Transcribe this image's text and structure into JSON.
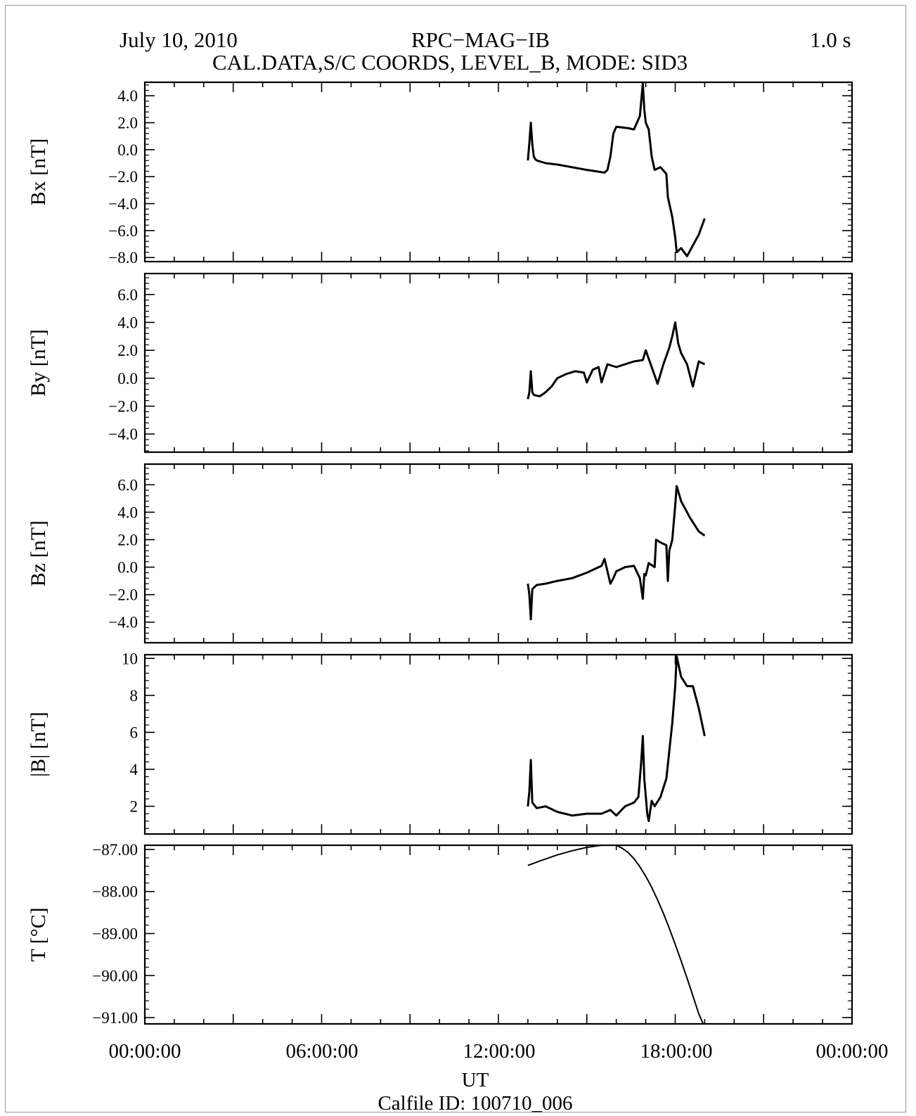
{
  "header": {
    "date": "July 10, 2010",
    "instrument": "RPC−MAG−IB",
    "resolution": "1.0 s",
    "subtitle": "CAL.DATA,S/C COORDS, LEVEL_B, MODE: SID3"
  },
  "footer": {
    "xlabel": "UT",
    "calfile": "Calfile ID: 100710_006"
  },
  "x_tick_labels": [
    "00:00:00",
    "06:00:00",
    "12:00:00",
    "18:00:00",
    "00:00:00"
  ],
  "colors": {
    "line": "#000000",
    "background": "#ffffff"
  },
  "chart_data": [
    {
      "type": "line",
      "ylabel": "Bx [nT]",
      "xlim": [
        0,
        24
      ],
      "ylim": [
        -8.3,
        5.0
      ],
      "y_ticks": [
        4.0,
        2.0,
        0.0,
        -2.0,
        -4.0,
        -6.0,
        -8.0
      ],
      "y_tick_labels": [
        "4.0",
        "2.0",
        "0.0",
        "−2.0",
        "−4.0",
        "−6.0",
        "−8.0"
      ],
      "series": [
        {
          "x": [
            13.0,
            13.05,
            13.1,
            13.15,
            13.2,
            13.25,
            13.3,
            13.6,
            14.0,
            14.5,
            15.0,
            15.3,
            15.6,
            15.7,
            15.8,
            15.9,
            16.0,
            16.4,
            16.6,
            16.8,
            16.9,
            16.95,
            17.0,
            17.1,
            17.2,
            17.3,
            17.5,
            17.7,
            17.75,
            17.8,
            17.9,
            18.0,
            18.05,
            18.2,
            18.4,
            18.6,
            18.8,
            19.0
          ],
          "y": [
            -0.8,
            0.5,
            2.0,
            0.4,
            -0.5,
            -0.7,
            -0.8,
            -1.0,
            -1.1,
            -1.3,
            -1.5,
            -1.6,
            -1.7,
            -1.5,
            -0.5,
            1.2,
            1.7,
            1.6,
            1.5,
            2.5,
            4.9,
            3.0,
            2.0,
            1.5,
            -0.5,
            -1.5,
            -1.3,
            -1.8,
            -3.5,
            -4.0,
            -5.0,
            -6.5,
            -7.6,
            -7.3,
            -7.9,
            -7.1,
            -6.3,
            -5.1
          ]
        }
      ]
    },
    {
      "type": "line",
      "ylabel": "By [nT]",
      "xlim": [
        0,
        24
      ],
      "ylim": [
        -5.3,
        7.5
      ],
      "y_ticks": [
        6.0,
        4.0,
        2.0,
        0.0,
        -2.0,
        -4.0
      ],
      "y_tick_labels": [
        "6.0",
        "4.0",
        "2.0",
        "0.0",
        "−2.0",
        "−4.0"
      ],
      "series": [
        {
          "x": [
            13.0,
            13.05,
            13.1,
            13.15,
            13.2,
            13.4,
            13.6,
            13.8,
            14.0,
            14.3,
            14.6,
            14.9,
            15.0,
            15.2,
            15.4,
            15.5,
            15.7,
            16.0,
            16.3,
            16.6,
            16.9,
            17.0,
            17.2,
            17.4,
            17.6,
            17.8,
            17.9,
            18.0,
            18.1,
            18.2,
            18.4,
            18.6,
            18.8,
            19.0
          ],
          "y": [
            -1.5,
            -1.0,
            0.5,
            -1.0,
            -1.2,
            -1.3,
            -1.0,
            -0.6,
            0.0,
            0.3,
            0.5,
            0.4,
            -0.3,
            0.6,
            0.8,
            -0.3,
            1.0,
            0.8,
            1.0,
            1.2,
            1.3,
            2.0,
            0.8,
            -0.4,
            1.0,
            2.2,
            3.0,
            4.0,
            2.5,
            1.8,
            1.0,
            -0.6,
            1.2,
            1.0
          ]
        }
      ]
    },
    {
      "type": "line",
      "ylabel": "Bz [nT]",
      "xlim": [
        0,
        24
      ],
      "ylim": [
        -5.5,
        7.5
      ],
      "y_ticks": [
        6.0,
        4.0,
        2.0,
        0.0,
        -2.0,
        -4.0
      ],
      "y_tick_labels": [
        "6.0",
        "4.0",
        "2.0",
        "0.0",
        "−2.0",
        "−4.0"
      ],
      "series": [
        {
          "x": [
            13.0,
            13.05,
            13.1,
            13.15,
            13.3,
            13.6,
            14.0,
            14.5,
            15.0,
            15.5,
            15.6,
            15.8,
            15.9,
            16.0,
            16.3,
            16.6,
            16.8,
            16.9,
            16.95,
            17.0,
            17.1,
            17.3,
            17.35,
            17.5,
            17.7,
            17.75,
            17.8,
            17.9,
            18.0,
            18.05,
            18.2,
            18.5,
            18.8,
            19.0
          ],
          "y": [
            -1.2,
            -2.0,
            -3.8,
            -1.6,
            -1.3,
            -1.2,
            -1.0,
            -0.8,
            -0.4,
            0.1,
            0.6,
            -1.2,
            -0.8,
            -0.3,
            0.0,
            0.1,
            -0.8,
            -2.3,
            -0.5,
            -0.6,
            0.3,
            0.0,
            2.0,
            1.8,
            1.6,
            -1.0,
            1.2,
            2.0,
            4.5,
            5.9,
            4.8,
            3.6,
            2.6,
            2.3
          ]
        }
      ]
    },
    {
      "type": "line",
      "ylabel": "|B| [nT]",
      "xlim": [
        0,
        24
      ],
      "ylim": [
        0.5,
        10.2
      ],
      "y_ticks": [
        10,
        8,
        6,
        4,
        2
      ],
      "y_tick_labels": [
        "10",
        "8",
        "6",
        "4",
        "2"
      ],
      "series": [
        {
          "x": [
            13.0,
            13.05,
            13.1,
            13.15,
            13.3,
            13.6,
            14.0,
            14.5,
            15.0,
            15.5,
            15.8,
            16.0,
            16.3,
            16.6,
            16.75,
            16.85,
            16.9,
            16.95,
            17.05,
            17.1,
            17.2,
            17.3,
            17.5,
            17.7,
            17.8,
            17.9,
            18.0,
            18.05,
            18.2,
            18.4,
            18.6,
            18.8,
            19.0
          ],
          "y": [
            2.0,
            2.8,
            4.5,
            2.2,
            1.9,
            2.0,
            1.7,
            1.5,
            1.6,
            1.6,
            1.8,
            1.5,
            2.0,
            2.2,
            2.5,
            4.5,
            5.8,
            3.5,
            1.6,
            1.2,
            2.3,
            2.0,
            2.5,
            3.5,
            5.0,
            6.5,
            8.5,
            10.1,
            9.0,
            8.5,
            8.5,
            7.3,
            5.8
          ]
        }
      ]
    },
    {
      "type": "line",
      "ylabel": "T [°C]",
      "xlim": [
        0,
        24
      ],
      "ylim": [
        -91.15,
        -86.9
      ],
      "y_ticks": [
        -87.0,
        -88.0,
        -89.0,
        -90.0,
        -91.0
      ],
      "y_tick_labels": [
        "−87.00",
        "−88.00",
        "−89.00",
        "−90.00",
        "−91.00"
      ],
      "series": [
        {
          "x": [
            13.0,
            13.5,
            14.0,
            14.5,
            15.0,
            15.5,
            15.8,
            16.0,
            16.2,
            16.4,
            16.6,
            16.8,
            17.0,
            17.2,
            17.4,
            17.6,
            17.8,
            18.0,
            18.2,
            18.4,
            18.6,
            18.8,
            18.95
          ],
          "y": [
            -87.38,
            -87.25,
            -87.13,
            -87.03,
            -86.95,
            -86.9,
            -86.89,
            -86.9,
            -86.97,
            -87.07,
            -87.22,
            -87.41,
            -87.64,
            -87.9,
            -88.2,
            -88.52,
            -88.88,
            -89.26,
            -89.65,
            -90.06,
            -90.48,
            -90.91,
            -91.15
          ]
        }
      ]
    }
  ]
}
